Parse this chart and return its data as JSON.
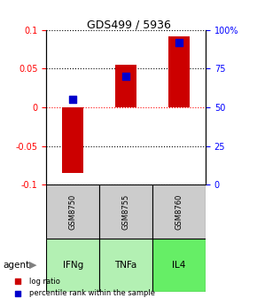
{
  "title": "GDS499 / 5936",
  "categories": [
    "IFNg",
    "TNFa",
    "IL4"
  ],
  "gsm_labels": [
    "GSM8750",
    "GSM8755",
    "GSM8760"
  ],
  "log_ratios": [
    -0.085,
    0.055,
    0.092
  ],
  "percentile_ranks": [
    0.55,
    0.7,
    0.92
  ],
  "ylim_left": [
    -0.1,
    0.1
  ],
  "ylim_right": [
    0,
    1.0
  ],
  "yticks_left": [
    -0.1,
    -0.05,
    0,
    0.05,
    0.1
  ],
  "yticks_right": [
    0,
    0.25,
    0.5,
    0.75,
    1.0
  ],
  "ytick_labels_right": [
    "0",
    "25",
    "50",
    "75",
    "100%"
  ],
  "ytick_labels_left": [
    "-0.1",
    "-0.05",
    "0",
    "0.05",
    "0.1"
  ],
  "bar_color": "#cc0000",
  "dot_color": "#0000cc",
  "grid_color": "#000000",
  "agent_colors": [
    "#ccffcc",
    "#ccffcc",
    "#66ff66"
  ],
  "gsm_bg_color": "#cccccc",
  "legend_bar_label": "log ratio",
  "legend_dot_label": "percentile rank within the sample",
  "bar_width": 0.4,
  "dot_size": 40
}
